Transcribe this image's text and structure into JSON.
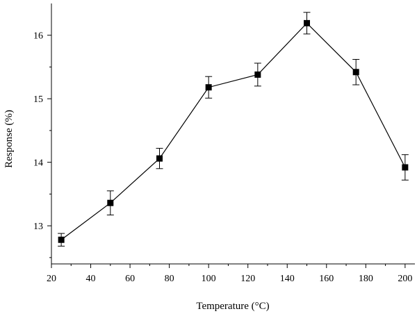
{
  "chart_data": {
    "type": "line",
    "title": "",
    "xlabel": "Temperature (°C)",
    "ylabel": "Response (%)",
    "xlim": [
      20,
      205
    ],
    "ylim": [
      12.4,
      16.5
    ],
    "x_ticks": [
      20,
      40,
      60,
      80,
      100,
      120,
      140,
      160,
      180,
      200
    ],
    "y_ticks": [
      13,
      14,
      15,
      16
    ],
    "grid": false,
    "legend": "none",
    "marker": "square",
    "color": "#000000",
    "series": [
      {
        "x": [
          25,
          50,
          75,
          100,
          125,
          150,
          175,
          200
        ],
        "y": [
          12.78,
          13.36,
          14.06,
          15.18,
          15.38,
          16.19,
          15.42,
          13.92
        ],
        "error": [
          0.1,
          0.19,
          0.16,
          0.17,
          0.18,
          0.17,
          0.2,
          0.2
        ]
      }
    ]
  }
}
